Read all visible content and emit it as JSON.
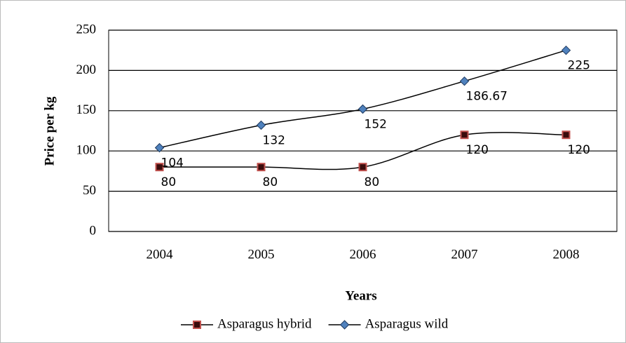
{
  "chart_data": {
    "type": "line",
    "categories": [
      "2004",
      "2005",
      "2006",
      "2007",
      "2008"
    ],
    "series": [
      {
        "name": "Asparagus hybrid",
        "color": "#000000",
        "marker_color": "#c0504d",
        "marker": "square",
        "values": [
          80,
          80,
          80,
          120,
          120
        ]
      },
      {
        "name": "Asparagus wild",
        "color": "#000000",
        "marker_color": "#4f81bd",
        "marker": "diamond",
        "values": [
          104,
          132,
          152,
          186.67,
          225
        ]
      }
    ],
    "xlabel": "Years",
    "ylabel": "Price per kg",
    "ylim": [
      0,
      250
    ],
    "yticks": [
      0,
      50,
      100,
      150,
      200,
      250
    ],
    "grid": true,
    "smooth": true,
    "legend": "bottom"
  }
}
